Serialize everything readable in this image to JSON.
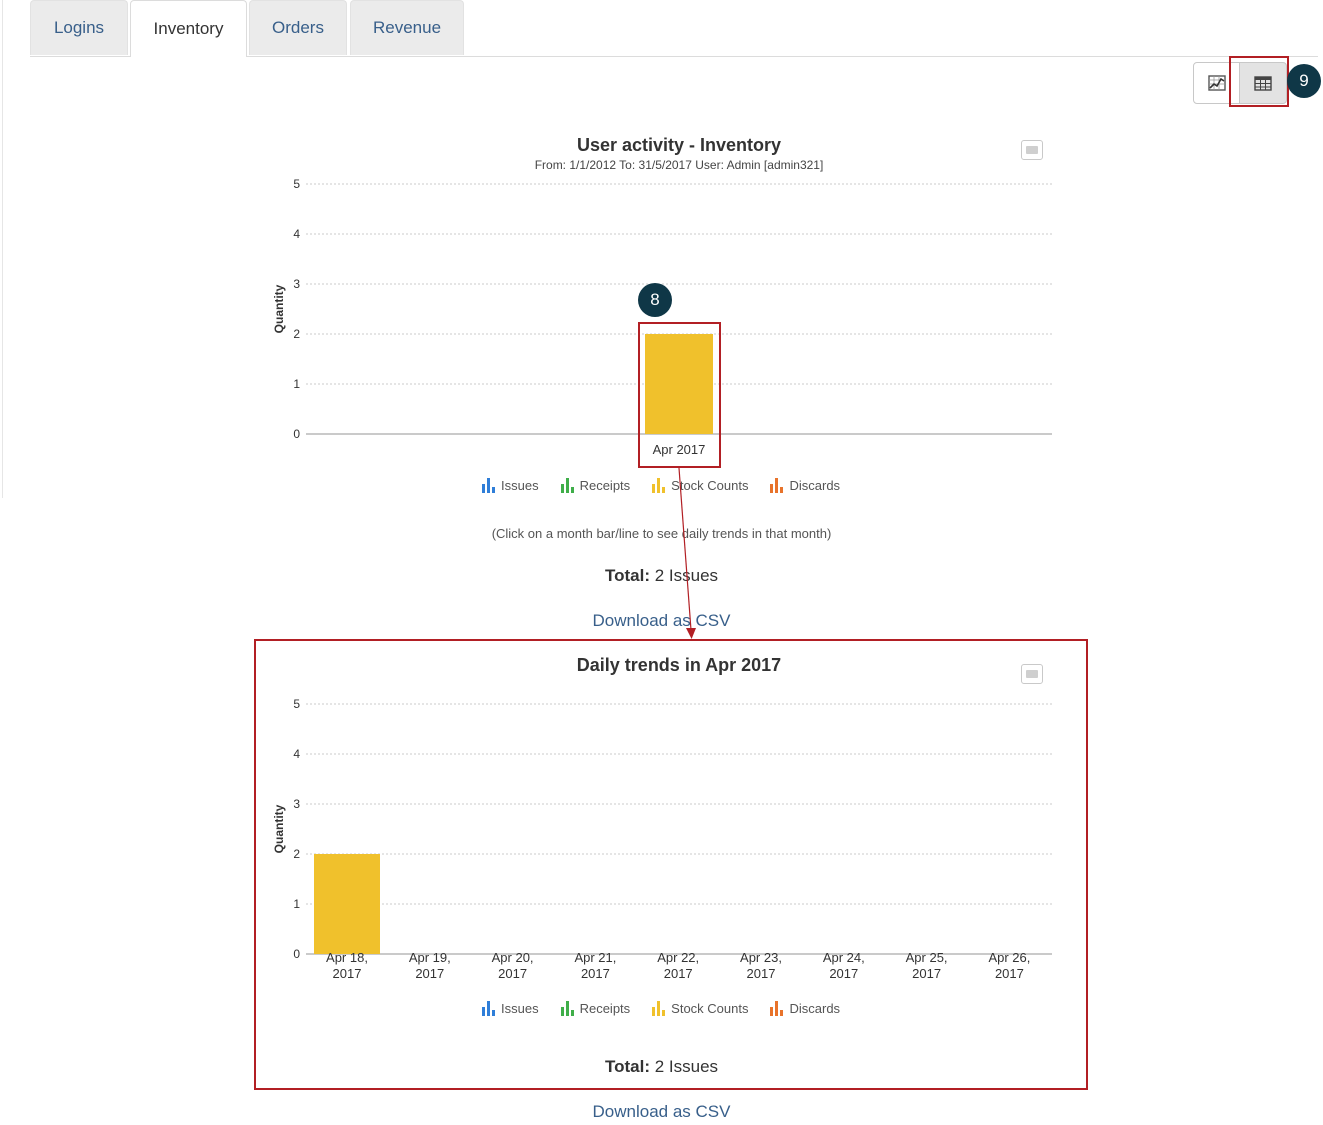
{
  "tabs": [
    {
      "label": "Logins",
      "active": false
    },
    {
      "label": "Inventory",
      "active": true
    },
    {
      "label": "Orders",
      "active": false
    },
    {
      "label": "Revenue",
      "active": false
    }
  ],
  "view_toggle": {
    "chart_icon": "chart-view-icon",
    "table_icon": "table-view-icon",
    "selected": "table"
  },
  "badges": {
    "month_bar": "8",
    "table_view": "9"
  },
  "legend": [
    {
      "label": "Issues",
      "color": "#2f7ed8"
    },
    {
      "label": "Receipts",
      "color": "#3fae49"
    },
    {
      "label": "Stock Counts",
      "color": "#f0c12c"
    },
    {
      "label": "Discards",
      "color": "#e8732b"
    }
  ],
  "monthly": {
    "hint": "(Click on a month bar/line to see daily trends in that month)",
    "total_label": "Total:",
    "total_value": "2 Issues",
    "download_label": "Download as CSV"
  },
  "daily": {
    "total_label": "Total:",
    "total_value": "2 Issues",
    "download_label": "Download as CSV"
  },
  "chart_data": [
    {
      "type": "bar",
      "title": "User activity - Inventory",
      "subtitle": "From: 1/1/2012 To: 31/5/2017 User: Admin [admin321]",
      "ylabel": "Quantity",
      "ylim": [
        0,
        5
      ],
      "yticks": [
        "0",
        "1",
        "2",
        "3",
        "4",
        "5"
      ],
      "categories": [
        "Apr 2017"
      ],
      "series": [
        {
          "name": "Issues",
          "values": [
            0
          ]
        },
        {
          "name": "Receipts",
          "values": [
            0
          ]
        },
        {
          "name": "Stock Counts",
          "values": [
            2
          ]
        },
        {
          "name": "Discards",
          "values": [
            0
          ]
        }
      ],
      "grid": true,
      "legend": "bottom"
    },
    {
      "type": "bar",
      "title": "Daily trends in Apr 2017",
      "ylabel": "Quantity",
      "ylim": [
        0,
        5
      ],
      "yticks": [
        "0",
        "1",
        "2",
        "3",
        "4",
        "5"
      ],
      "categories": [
        [
          "Apr 18,",
          "2017"
        ],
        [
          "Apr 19,",
          "2017"
        ],
        [
          "Apr 20,",
          "2017"
        ],
        [
          "Apr 21,",
          "2017"
        ],
        [
          "Apr 22,",
          "2017"
        ],
        [
          "Apr 23,",
          "2017"
        ],
        [
          "Apr 24,",
          "2017"
        ],
        [
          "Apr 25,",
          "2017"
        ],
        [
          "Apr 26,",
          "2017"
        ]
      ],
      "series": [
        {
          "name": "Issues",
          "values": [
            0,
            0,
            0,
            0,
            0,
            0,
            0,
            0,
            0
          ]
        },
        {
          "name": "Receipts",
          "values": [
            0,
            0,
            0,
            0,
            0,
            0,
            0,
            0,
            0
          ]
        },
        {
          "name": "Stock Counts",
          "values": [
            2,
            0,
            0,
            0,
            0,
            0,
            0,
            0,
            0
          ]
        },
        {
          "name": "Discards",
          "values": [
            0,
            0,
            0,
            0,
            0,
            0,
            0,
            0,
            0
          ]
        }
      ],
      "grid": true,
      "legend": "bottom"
    }
  ]
}
